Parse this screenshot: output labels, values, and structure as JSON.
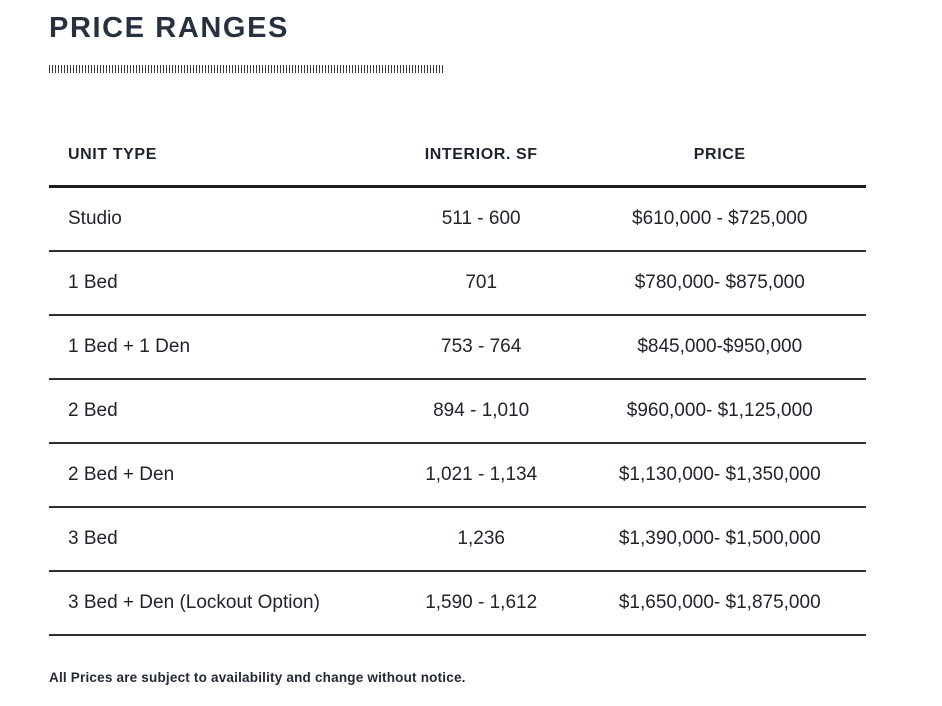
{
  "page": {
    "title": "PRICE RANGES",
    "footnote": "All Prices are subject to availability and change without notice."
  },
  "table": {
    "columns": [
      "UNIT TYPE",
      "INTERIOR. SF",
      "PRICE"
    ],
    "rows": [
      {
        "unit_type": "Studio",
        "interior_sf": "511 - 600",
        "price": "$610,000 - $725,000"
      },
      {
        "unit_type": "1 Bed",
        "interior_sf": "701",
        "price": "$780,000- $875,000"
      },
      {
        "unit_type": "1 Bed + 1 Den",
        "interior_sf": "753 - 764",
        "price": "$845,000-$950,000"
      },
      {
        "unit_type": "2 Bed",
        "interior_sf": "894 - 1,010",
        "price": "$960,000- $1,125,000"
      },
      {
        "unit_type": "2 Bed + Den",
        "interior_sf": "1,021 - 1,134",
        "price": "$1,130,000- $1,350,000"
      },
      {
        "unit_type": "3 Bed",
        "interior_sf": "1,236",
        "price": "$1,390,000- $1,500,000"
      },
      {
        "unit_type": "3 Bed + Den (Lockout Option)",
        "interior_sf": "1,590 - 1,612",
        "price": "$1,650,000- $1,875,000"
      }
    ]
  },
  "colors": {
    "title": "#26303f",
    "header_rule": "#1c1c1c",
    "row_rule": "#2e2e2e",
    "body_text": "#20252c",
    "background": "#ffffff"
  }
}
